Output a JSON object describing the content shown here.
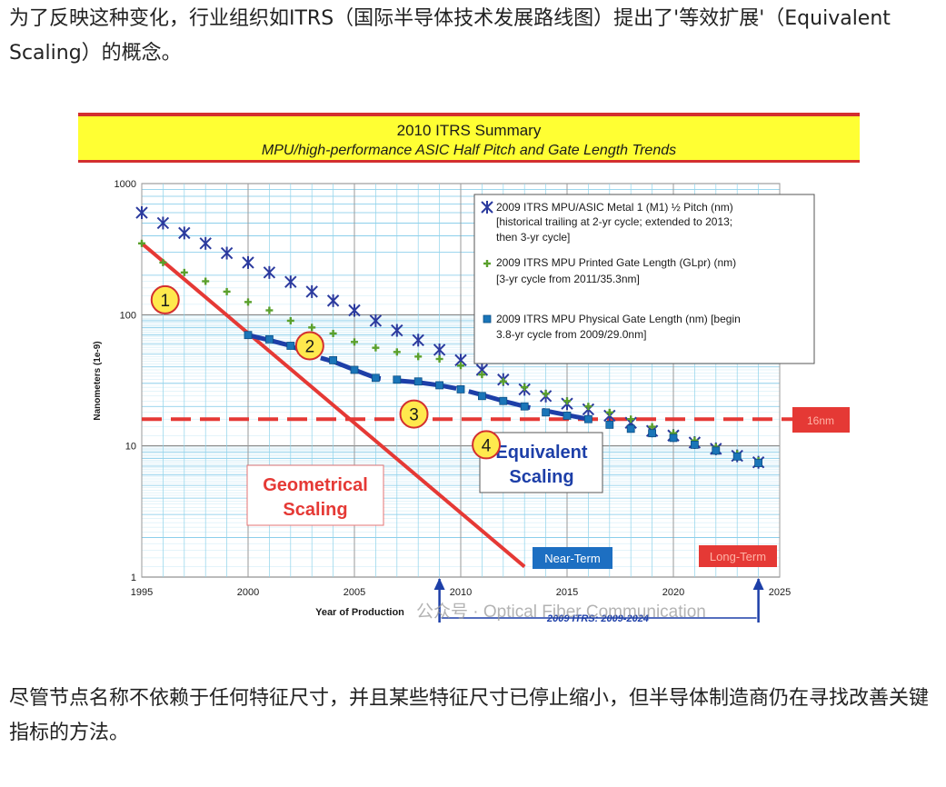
{
  "article": {
    "para_top": "为了反映这种变化，行业组织如ITRS（国际半导体技术发展路线图）提出了'等效扩展'（Equivalent Scaling）的概念。",
    "para_bottom": "尽管节点名称不依赖于任何特征尺寸，并且某些特征尺寸已停止缩小，但半导体制造商仍在寻找改善关键指标的方法。",
    "watermark": "公众号 · Optical Fiber Communication"
  },
  "chart_data": {
    "type": "scatter",
    "title": "2010 ITRS Summary",
    "subtitle": "MPU/high-performance ASIC Half Pitch and Gate Length Trends",
    "xlabel": "Year of Production",
    "ylabel": "Nanometers (1e-9)",
    "x_scale": "linear",
    "y_scale": "log",
    "xlim": [
      1995,
      2025
    ],
    "ylim": [
      1,
      1000
    ],
    "x_ticks": [
      "1995",
      "2000",
      "2005",
      "2010",
      "2015",
      "2020",
      "2025"
    ],
    "y_ticks": [
      "1000",
      "100",
      "10",
      "1"
    ],
    "grid": true,
    "legend_position": "top-right",
    "colors": {
      "title_band": "#ffff33",
      "title_border": "#d32f2f",
      "m1": "#2b3a9e",
      "gl_pr": "#5aa02c",
      "gl_phys": "#1a75b8",
      "geometric": "#e53935",
      "equivalent": "#1d3fa8",
      "reference": "#e53935"
    },
    "series": [
      {
        "name": "2009 ITRS MPU/ASIC Metal 1 (M1) ½ Pitch (nm)",
        "note": "[historical trailing at 2-yr cycle; extended to 2013; then 3-yr cycle]",
        "marker": "asterisk",
        "x": [
          1995,
          1996,
          1997,
          1998,
          1999,
          2000,
          2001,
          2002,
          2003,
          2004,
          2005,
          2006,
          2007,
          2008,
          2009,
          2010,
          2011,
          2012,
          2013,
          2014,
          2015,
          2016,
          2017,
          2018,
          2019,
          2020,
          2021,
          2022,
          2023,
          2024
        ],
        "y": [
          600,
          500,
          420,
          350,
          295,
          250,
          210,
          178,
          150,
          128,
          108,
          90,
          76,
          64,
          54,
          45,
          38,
          32,
          27,
          24,
          21,
          19,
          17,
          15,
          13,
          12,
          10.6,
          9.5,
          8.4,
          7.5
        ]
      },
      {
        "name": "2009 ITRS MPU Printed Gate Length (GLpr) (nm)",
        "note": "[3-yr cycle from 2011/35.3nm]",
        "marker": "plus",
        "x": [
          1995,
          1996,
          1997,
          1998,
          1999,
          2000,
          2001,
          2002,
          2003,
          2004,
          2005,
          2006,
          2007,
          2008,
          2009,
          2010,
          2011,
          2012,
          2013,
          2014,
          2015,
          2016,
          2017,
          2018,
          2019,
          2020,
          2021,
          2022,
          2023,
          2024
        ],
        "y": [
          350,
          250,
          210,
          180,
          150,
          125,
          108,
          90,
          80,
          72,
          62,
          56,
          52,
          48,
          46,
          41,
          35,
          31,
          28,
          25,
          22,
          20,
          18,
          16,
          14,
          12.5,
          11,
          9.8,
          8.7,
          7.7
        ]
      },
      {
        "name": "2009 ITRS MPU Physical Gate Length (nm) [begin",
        "note": "3.8-yr cycle from 2009/29.0nm]",
        "marker": "square",
        "x": [
          2000,
          2001,
          2002,
          2003,
          2004,
          2005,
          2006,
          2007,
          2008,
          2009,
          2010,
          2011,
          2012,
          2013,
          2014,
          2015,
          2016,
          2017,
          2018,
          2019,
          2020,
          2021,
          2022,
          2023,
          2024
        ],
        "y": [
          70,
          65,
          58,
          50,
          45,
          38,
          33,
          32,
          31,
          29,
          27,
          24,
          22,
          20,
          18,
          17,
          16,
          14.5,
          13.5,
          12.5,
          11.5,
          10.2,
          9.2,
          8.3,
          7.4
        ]
      }
    ],
    "annotations": {
      "geometrical_scaling": [
        "Geometrical",
        "Scaling"
      ],
      "equivalent_scaling": [
        "Equivalent",
        "Scaling"
      ],
      "reference_label": "16nm",
      "reference_value": 16,
      "near_term": "Near-Term",
      "long_term": "Long-Term",
      "bottom_range": "2009 ITRS: 2009-2024",
      "range_markers": [
        2009,
        2024
      ],
      "numbered_points": [
        {
          "label": "1",
          "x": 1996.1,
          "y": 130
        },
        {
          "label": "2",
          "x": 2002.9,
          "y": 58
        },
        {
          "label": "3",
          "x": 2007.8,
          "y": 17.5
        },
        {
          "label": "4",
          "x": 2011.2,
          "y": 10.2
        }
      ],
      "geometric_line": {
        "x": [
          1995,
          2013
        ],
        "y": [
          350,
          1.2
        ]
      },
      "equivalent_line": {
        "x": [
          2000,
          2001,
          2002,
          2003,
          2004,
          2005,
          2006,
          2007,
          2008,
          2009,
          2010,
          2011,
          2012,
          2013,
          2014,
          2015,
          2016
        ],
        "y": [
          70,
          64,
          58,
          49,
          44,
          38,
          33,
          31.5,
          30.5,
          29,
          27,
          24.5,
          22,
          20,
          18.5,
          17.2,
          16
        ]
      }
    }
  }
}
